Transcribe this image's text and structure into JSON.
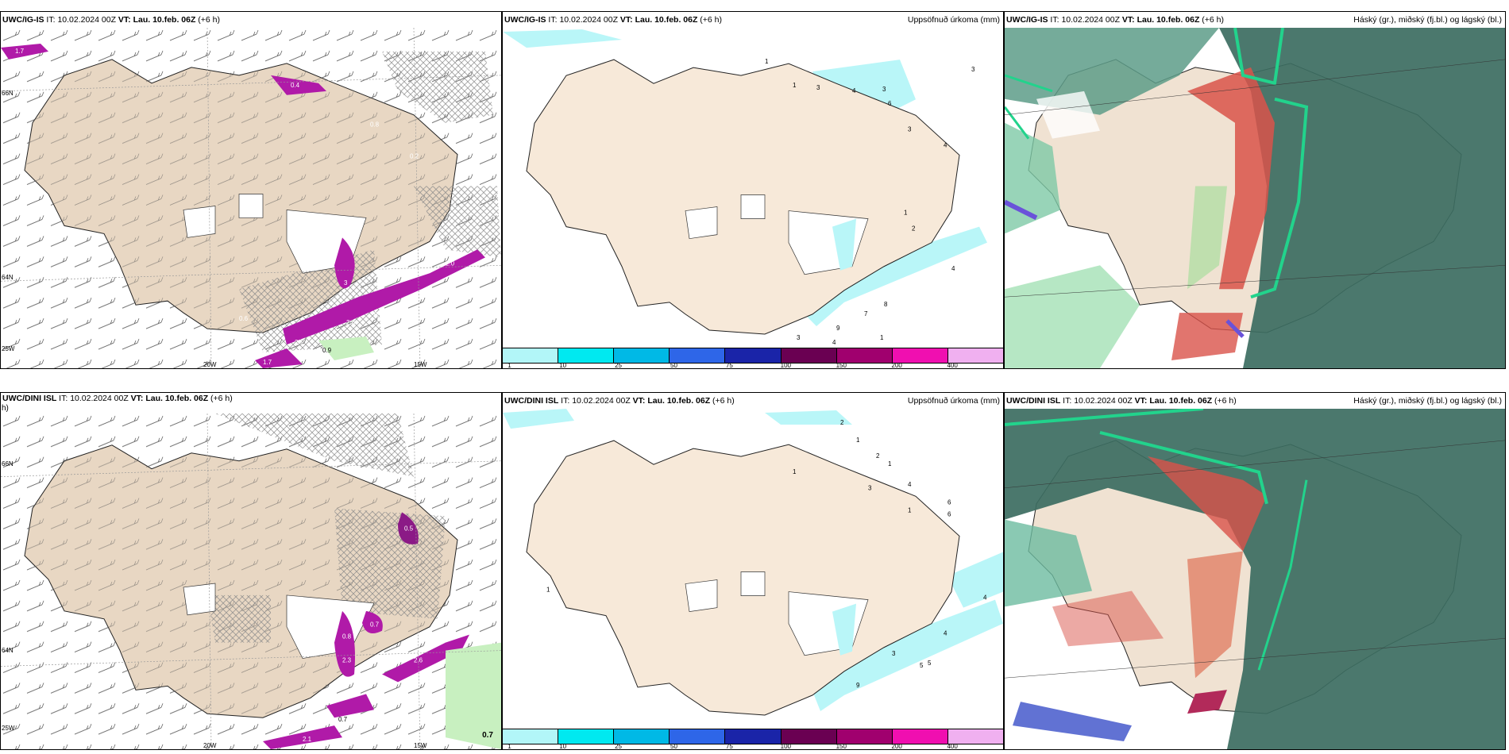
{
  "colors": {
    "land": "#f7e9d9",
    "land_wind": "#e8d7c3",
    "precip_purple": "#b01aa8",
    "precip_cyan": "#b9f6f8",
    "cloud_high": "#4f9b83",
    "cloud_dark": "#2f5f52",
    "cloud_red": "#d9534a",
    "cloud_green": "#22d38c"
  },
  "panels": [
    {
      "model": "UWC/IG-IS",
      "it_label": "IT:",
      "it": "10.02.2024 00Z",
      "vt_label": "VT:",
      "vt": "Lau. 10.feb. 06Z",
      "lead": "(+6 h)",
      "right": ""
    },
    {
      "model": "UWC/IG-IS",
      "it_label": "IT:",
      "it": "10.02.2024 00Z",
      "vt_label": "VT:",
      "vt": "Lau. 10.feb. 06Z",
      "lead": "(+6 h)",
      "right": "Uppsöfnuð úrkoma (mm)"
    },
    {
      "model": "UWC/IG-IS",
      "it_label": "IT:",
      "it": "10.02.2024 00Z",
      "vt_label": "VT:",
      "vt": "Lau. 10.feb. 06Z",
      "lead": "(+6 h)",
      "right": "Háský (gr.), miðský (fj.bl.) og lágský (bl.)"
    },
    {
      "model": "UWC/DINI ISL",
      "it_label": "IT:",
      "it": "10.02.2024 00Z",
      "vt_label": "VT:",
      "vt": "Lau. 10.feb. 06Z",
      "lead": "(+6 h)",
      "right": ""
    },
    {
      "model": "UWC/DINI ISL",
      "it_label": "IT:",
      "it": "10.02.2024 00Z",
      "vt_label": "VT:",
      "vt": "Lau. 10.feb. 06Z",
      "lead": "(+6 h)",
      "right": "Uppsöfnuð úrkoma (mm)"
    },
    {
      "model": "UWC/DINI ISL",
      "it_label": "IT:",
      "it": "10.02.2024 00Z",
      "vt_label": "VT:",
      "vt": "Lau. 10.feb. 06Z",
      "lead": "(+6 h)",
      "right": "Háský (gr.), miðský (fj.bl.) og lágský (bl.)"
    }
  ],
  "axis_labels": {
    "lon_20": "20W",
    "lon_15": "15W",
    "lat_66": "66N",
    "lat_64": "64N",
    "lon_25": "25W"
  },
  "left_panel_overlay": {
    "top_title_label_short": "h)",
    "corner_value": "0.7"
  },
  "colorbar": {
    "ticks": [
      "1",
      "10",
      "25",
      "50",
      "75",
      "100",
      "150",
      "200",
      "400"
    ],
    "colors": [
      "#b2f6f8",
      "#00e9f0",
      "#00b9e6",
      "#2e66e8",
      "#1a24a8",
      "#6a0052",
      "#a0006e",
      "#f00fb0",
      "#f0b0f0"
    ]
  },
  "top_precip_values": [
    {
      "v": "1"
    },
    {
      "v": "1"
    },
    {
      "v": "3"
    },
    {
      "v": "4"
    },
    {
      "v": "3"
    },
    {
      "v": "6"
    },
    {
      "v": "3"
    },
    {
      "v": "4"
    },
    {
      "v": "1"
    },
    {
      "v": "2"
    },
    {
      "v": "4"
    },
    {
      "v": "8"
    },
    {
      "v": "7"
    },
    {
      "v": "9"
    },
    {
      "v": "3"
    },
    {
      "v": "4"
    },
    {
      "v": "1"
    },
    {
      "v": "3"
    }
  ],
  "bottom_precip_values": [
    {
      "v": "2"
    },
    {
      "v": "1"
    },
    {
      "v": "2"
    },
    {
      "v": "1"
    },
    {
      "v": "4"
    },
    {
      "v": "3"
    },
    {
      "v": "1"
    },
    {
      "v": "6"
    },
    {
      "v": "6"
    },
    {
      "v": "1"
    },
    {
      "v": "1"
    },
    {
      "v": "4"
    },
    {
      "v": "4"
    },
    {
      "v": "3"
    },
    {
      "v": "5"
    },
    {
      "v": "5"
    },
    {
      "v": "9"
    }
  ],
  "top_left_values": [
    {
      "v": "1.7"
    },
    {
      "v": "2.0"
    },
    {
      "v": "0.4"
    },
    {
      "v": "0.8"
    },
    {
      "v": "0.2"
    },
    {
      "v": "3"
    },
    {
      "v": "2.0"
    },
    {
      "v": "1.6"
    },
    {
      "v": "2.6"
    },
    {
      "v": "2.1"
    },
    {
      "v": "0.9"
    },
    {
      "v": "1.7"
    },
    {
      "v": "0.9"
    },
    {
      "v": "0.6"
    }
  ],
  "bottom_left_values": [
    {
      "v": "0.5"
    },
    {
      "v": "0.7"
    },
    {
      "v": "2.3"
    },
    {
      "v": "0.8"
    },
    {
      "v": "2.6"
    },
    {
      "v": "0.7"
    },
    {
      "v": "2.1"
    },
    {
      "v": "0.6"
    },
    {
      "v": "0.7"
    }
  ]
}
